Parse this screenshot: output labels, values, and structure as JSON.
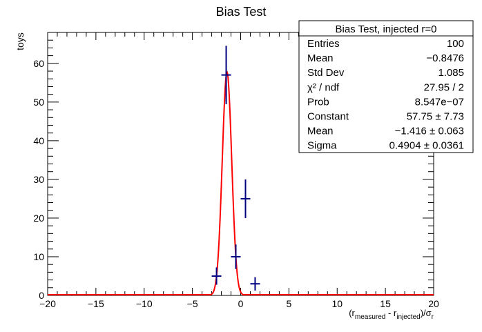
{
  "chart_data": {
    "type": "histogram",
    "title": "Bias Test",
    "ylabel": "toys",
    "xlabel": {
      "open": "(r",
      "sub_measured": "measured",
      "minus": " - r",
      "sub_injected": "injected",
      "close": ")/σ",
      "sub_r": "r"
    },
    "xlim": [
      -20,
      20
    ],
    "ylim": [
      0,
      68
    ],
    "x_ticks": [
      -20,
      -15,
      -10,
      -5,
      0,
      5,
      10,
      15,
      20
    ],
    "x_tick_labels": [
      "−20",
      "−15",
      "−10",
      "−5",
      "0",
      "5",
      "10",
      "15",
      "20"
    ],
    "y_ticks": [
      0,
      10,
      20,
      30,
      40,
      50,
      60
    ],
    "y_tick_labels": [
      "0",
      "10",
      "20",
      "30",
      "40",
      "50",
      "60"
    ],
    "bin_width": 1,
    "bins": [
      {
        "x": -2.5,
        "y": 5
      },
      {
        "x": -1.5,
        "y": 57
      },
      {
        "x": -0.5,
        "y": 10
      },
      {
        "x": 0.5,
        "y": 25
      },
      {
        "x": 1.5,
        "y": 3
      }
    ],
    "fit": {
      "function": "gaus",
      "constant": 57.75,
      "mean": -1.416,
      "sigma": 0.4904,
      "color": "#ff0000"
    },
    "marker_color": "#000080",
    "stats_box": {
      "title": "Bias Test, injected r=0",
      "rows": [
        {
          "label": "Entries",
          "value": "100"
        },
        {
          "label": "Mean",
          "value": "−0.8476"
        },
        {
          "label": "Std Dev",
          "value": "1.085"
        },
        {
          "label": "χ² / ndf",
          "value": "27.95 / 2"
        },
        {
          "label": "Prob",
          "value": "8.547e−07"
        },
        {
          "label": "Constant",
          "value": "57.75 ± 7.73"
        },
        {
          "label": "Mean",
          "value": "−1.416 ± 0.063"
        },
        {
          "label": "Sigma",
          "value": "0.4904 ± 0.0361"
        }
      ]
    }
  }
}
